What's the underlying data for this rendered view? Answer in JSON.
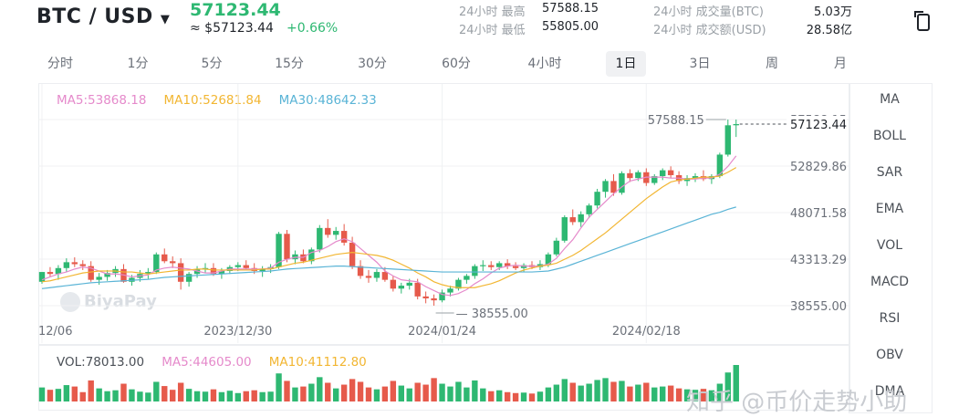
{
  "header": {
    "pair": "BTC / USD",
    "price": "57123.44",
    "price_approx": "≈ $57123.44",
    "change": "+0.66%",
    "stats": [
      {
        "label": "24小时 最高",
        "value": "57588.15"
      },
      {
        "label": "24小时 最低",
        "value": "55805.00"
      },
      {
        "label": "24小时 成交量(BTC)",
        "value": "5.03万"
      },
      {
        "label": "24小时 成交额(USD)",
        "value": "28.58亿"
      }
    ]
  },
  "timeframes": [
    "分时",
    "1分",
    "5分",
    "15分",
    "30分",
    "60分",
    "4小时",
    "1日",
    "3日",
    "周",
    "月"
  ],
  "active_timeframe": "1日",
  "indicators": [
    "MA",
    "BOLL",
    "SAR",
    "EMA",
    "VOL",
    "MACD",
    "RSI",
    "OBV",
    "DMA"
  ],
  "ma_legend": [
    {
      "label": "MA5:53868.18",
      "color": "#e58acb"
    },
    {
      "label": "MA10:52681.84",
      "color": "#f2b632"
    },
    {
      "label": "MA30:48642.33",
      "color": "#5ab4d6"
    }
  ],
  "vol_legend": [
    {
      "label": "VOL:78013.00",
      "color": "#4b5057"
    },
    {
      "label": "MA5:44605.00",
      "color": "#e58acb"
    },
    {
      "label": "MA10:41112.80",
      "color": "#f2b632"
    }
  ],
  "colors": {
    "up": "#2eb872",
    "down": "#e65a4b"
  },
  "chart_data": {
    "type": "candlestick",
    "y_ticks": [
      "57588.15",
      "52829.86",
      "48071.58",
      "43313.29",
      "38555.00"
    ],
    "ylim": [
      38555.0,
      57588.15
    ],
    "x_tick_labels": [
      "12/06",
      "2023/12/30",
      "2024/01/24",
      "2024/02/18"
    ],
    "x_tick_index": [
      0,
      24,
      49,
      74
    ],
    "high_label": "57588.15",
    "low_label": "38555.00",
    "last_label": "57123.44",
    "ohlc": [
      [
        41000,
        42000,
        40800,
        42000
      ],
      [
        42000,
        42500,
        41500,
        41800
      ],
      [
        41800,
        42700,
        41200,
        42400
      ],
      [
        42400,
        43400,
        42000,
        43000
      ],
      [
        43000,
        43500,
        42500,
        42800
      ],
      [
        42800,
        43200,
        42200,
        42600
      ],
      [
        42600,
        43100,
        41000,
        41200
      ],
      [
        41200,
        41900,
        40700,
        41500
      ],
      [
        41500,
        42200,
        41100,
        41900
      ],
      [
        41900,
        42600,
        41500,
        42300
      ],
      [
        42300,
        42800,
        40900,
        41000
      ],
      [
        41000,
        41700,
        40600,
        41400
      ],
      [
        41400,
        42200,
        41000,
        41800
      ],
      [
        41800,
        42400,
        41300,
        42000
      ],
      [
        42000,
        44000,
        41800,
        43800
      ],
      [
        43800,
        44400,
        42900,
        43100
      ],
      [
        43100,
        43600,
        42400,
        42900
      ],
      [
        42900,
        43400,
        40200,
        41000
      ],
      [
        41000,
        42000,
        40500,
        41800
      ],
      [
        41800,
        42600,
        41400,
        42300
      ],
      [
        42300,
        42900,
        41900,
        42400
      ],
      [
        42400,
        42900,
        41600,
        41800
      ],
      [
        41800,
        42400,
        41300,
        42100
      ],
      [
        42100,
        42700,
        41800,
        42500
      ],
      [
        42500,
        43000,
        42100,
        42700
      ],
      [
        42700,
        43200,
        42200,
        42400
      ],
      [
        42400,
        42900,
        41800,
        42100
      ],
      [
        42100,
        42600,
        41500,
        42300
      ],
      [
        42300,
        42800,
        41900,
        42500
      ],
      [
        42500,
        46100,
        42300,
        45900
      ],
      [
        45900,
        46300,
        43000,
        43300
      ],
      [
        43300,
        44200,
        42800,
        43800
      ],
      [
        43800,
        44300,
        42900,
        43100
      ],
      [
        43100,
        44500,
        42800,
        44300
      ],
      [
        44300,
        46800,
        44000,
        46500
      ],
      [
        46500,
        47400,
        45500,
        45800
      ],
      [
        45800,
        46600,
        45300,
        46200
      ],
      [
        46200,
        46900,
        44700,
        45000
      ],
      [
        45000,
        45600,
        42300,
        42600
      ],
      [
        42600,
        43200,
        41300,
        41600
      ],
      [
        41600,
        42200,
        40900,
        41400
      ],
      [
        41400,
        42300,
        41000,
        42000
      ],
      [
        42000,
        42500,
        41000,
        41200
      ],
      [
        41200,
        41600,
        40000,
        40300
      ],
      [
        40300,
        40900,
        39800,
        40600
      ],
      [
        40600,
        41300,
        40200,
        40900
      ],
      [
        40900,
        41300,
        39200,
        39500
      ],
      [
        39500,
        40000,
        38800,
        39300
      ],
      [
        39300,
        39700,
        38555,
        39100
      ],
      [
        39100,
        40200,
        38900,
        39900
      ],
      [
        39900,
        40600,
        39500,
        40300
      ],
      [
        40300,
        41400,
        40100,
        41200
      ],
      [
        41200,
        41800,
        40800,
        41600
      ],
      [
        41600,
        42800,
        41300,
        42600
      ],
      [
        42600,
        43200,
        42100,
        42700
      ],
      [
        42700,
        43100,
        42200,
        42500
      ],
      [
        42500,
        43100,
        42200,
        42900
      ],
      [
        42900,
        43300,
        42300,
        42600
      ],
      [
        42600,
        43000,
        42200,
        42400
      ],
      [
        42400,
        42900,
        42000,
        42700
      ],
      [
        42700,
        43100,
        42300,
        42500
      ],
      [
        42500,
        43200,
        42200,
        42800
      ],
      [
        42800,
        44000,
        42500,
        43800
      ],
      [
        43800,
        45500,
        43600,
        45200
      ],
      [
        45200,
        47800,
        45000,
        47600
      ],
      [
        47600,
        48400,
        46800,
        47100
      ],
      [
        47100,
        48200,
        46600,
        47900
      ],
      [
        47900,
        49000,
        47500,
        48800
      ],
      [
        48800,
        50500,
        48500,
        50200
      ],
      [
        50200,
        51500,
        49600,
        51300
      ],
      [
        51300,
        52000,
        49800,
        50100
      ],
      [
        50100,
        52300,
        49900,
        52100
      ],
      [
        52100,
        52500,
        51200,
        51600
      ],
      [
        51600,
        52400,
        51300,
        52200
      ],
      [
        52200,
        52600,
        50800,
        51100
      ],
      [
        51100,
        52000,
        50900,
        51800
      ],
      [
        51800,
        52600,
        51400,
        52400
      ],
      [
        52400,
        52800,
        51600,
        51900
      ],
      [
        51900,
        52300,
        51000,
        51300
      ],
      [
        51300,
        51900,
        50800,
        51600
      ],
      [
        51600,
        52100,
        51200,
        51800
      ],
      [
        51800,
        52400,
        51300,
        51500
      ],
      [
        51500,
        52000,
        51000,
        51800
      ],
      [
        51800,
        54200,
        51600,
        54000
      ],
      [
        54000,
        57588,
        53800,
        57000
      ],
      [
        57000,
        57588,
        55805,
        57123
      ]
    ],
    "ma5": [
      41200,
      41500,
      41800,
      42000,
      42300,
      42500,
      42400,
      42100,
      41800,
      41800,
      41700,
      41500,
      41600,
      41700,
      42200,
      42400,
      42500,
      42400,
      42300,
      42100,
      41900,
      41900,
      42100,
      42300,
      42300,
      42300,
      42300,
      42300,
      42400,
      43000,
      43300,
      43500,
      43500,
      44000,
      44200,
      44600,
      45100,
      45400,
      45100,
      44400,
      43700,
      43000,
      42100,
      41600,
      41200,
      41100,
      41000,
      40500,
      40100,
      39700,
      39600,
      39800,
      40200,
      40800,
      41300,
      41900,
      42400,
      42600,
      42700,
      42600,
      42600,
      42600,
      42800,
      43400,
      44400,
      45300,
      46500,
      47600,
      48400,
      49200,
      50000,
      50700,
      51300,
      51500,
      51700,
      51700,
      51700,
      51600,
      51600,
      51500,
      51500,
      51600,
      51600,
      52000,
      52800,
      53868
    ],
    "ma10": [
      41000,
      41100,
      41300,
      41500,
      41700,
      41900,
      42000,
      42100,
      42100,
      42100,
      42000,
      42000,
      41900,
      41800,
      41900,
      42000,
      42100,
      42200,
      42200,
      42300,
      42300,
      42200,
      42200,
      42200,
      42200,
      42200,
      42200,
      42300,
      42300,
      42500,
      42700,
      42900,
      43000,
      43200,
      43400,
      43600,
      43800,
      43900,
      44000,
      43900,
      43800,
      43700,
      43500,
      43200,
      42800,
      42400,
      41900,
      41500,
      41000,
      40700,
      40500,
      40400,
      40400,
      40400,
      40600,
      40800,
      41100,
      41500,
      41900,
      42200,
      42400,
      42600,
      42700,
      42900,
      43300,
      43700,
      44200,
      44800,
      45400,
      46000,
      46700,
      47400,
      48100,
      48800,
      49500,
      50100,
      50700,
      51200,
      51400,
      51500,
      51600,
      51700,
      51700,
      51800,
      52200,
      52681
    ],
    "ma30": [
      40300,
      40400,
      40500,
      40600,
      40700,
      40800,
      40900,
      40950,
      41000,
      41050,
      41100,
      41150,
      41200,
      41250,
      41350,
      41450,
      41500,
      41550,
      41600,
      41650,
      41700,
      41750,
      41800,
      41850,
      41900,
      41950,
      42000,
      42050,
      42100,
      42200,
      42300,
      42350,
      42400,
      42450,
      42500,
      42550,
      42600,
      42600,
      42550,
      42500,
      42450,
      42400,
      42350,
      42300,
      42250,
      42200,
      42150,
      42100,
      42050,
      42000,
      42000,
      42000,
      42000,
      42000,
      42000,
      42000,
      42000,
      42000,
      42000,
      42000,
      42000,
      42050,
      42100,
      42300,
      42500,
      42800,
      43100,
      43400,
      43700,
      44000,
      44300,
      44600,
      44900,
      45200,
      45500,
      45800,
      46100,
      46400,
      46700,
      47000,
      47300,
      47600,
      47900,
      48100,
      48400,
      48642
    ],
    "volume": [
      30000,
      25000,
      27000,
      35000,
      32000,
      20000,
      45000,
      28000,
      22000,
      24000,
      38000,
      26000,
      21000,
      19000,
      42000,
      33000,
      25000,
      40000,
      27000,
      22000,
      21000,
      26000,
      20000,
      23000,
      18000,
      22000,
      24000,
      20000,
      21000,
      60000,
      44000,
      30000,
      32000,
      38000,
      52000,
      40000,
      28000,
      36000,
      48000,
      42000,
      30000,
      26000,
      32000,
      44000,
      34000,
      28000,
      40000,
      36000,
      50000,
      38000,
      32000,
      42000,
      30000,
      45000,
      28000,
      22000,
      24000,
      20000,
      18000,
      19000,
      17000,
      21000,
      30000,
      36000,
      48000,
      40000,
      34000,
      38000,
      46000,
      50000,
      42000,
      44000,
      32000,
      36000,
      40000,
      30000,
      32000,
      34000,
      28000,
      26000,
      25000,
      27000,
      24000,
      38000,
      62000,
      78013
    ]
  },
  "watermark": "BiyaPay",
  "bottom_watermark": "知乎 @币价走势小助"
}
